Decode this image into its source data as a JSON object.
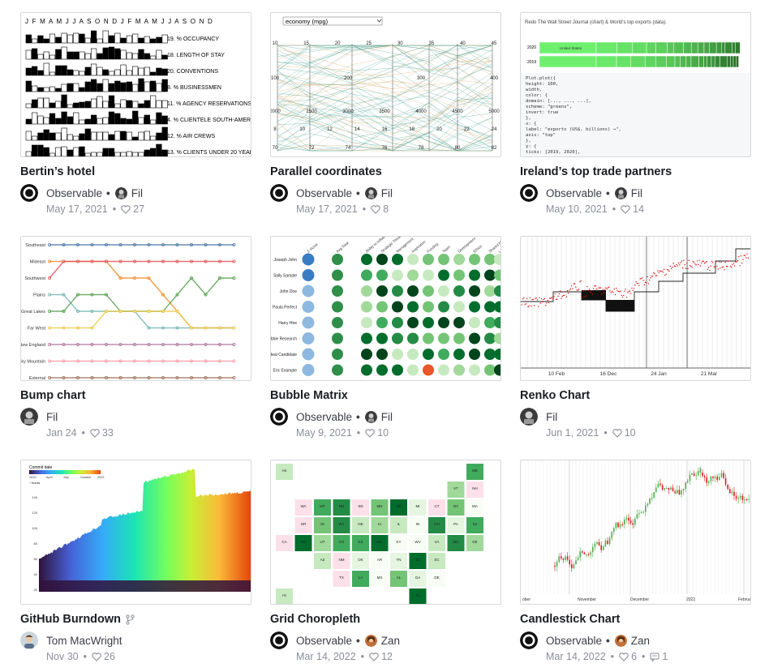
{
  "cards": [
    {
      "title": "Bertin’s hotel",
      "org": "Observable",
      "author": "Fil",
      "date": "May 17, 2021",
      "likes": "27",
      "thumb": {
        "months": "J F M A M J J A S O N D J F M A M J J A S O N D",
        "rows": [
          "19. % OCCUPANCY",
          "18. LENGTH OF STAY",
          "20. CONVENTIONS",
          "8. % BUSINESSMEN",
          "11. % AGENCY RESERVATIONS",
          "4. % CLIENTELE SOUTH-AMERICA",
          "12. % AIR CREWS",
          "13. % CLIENTS UNDER 20 YEARS"
        ]
      }
    },
    {
      "title": "Parallel coordinates",
      "org": "Observable",
      "author": "Fil",
      "date": "May 17, 2021",
      "likes": "8",
      "thumb": {
        "select": "economy (mpg)",
        "axes": [
          [
            "10",
            "15",
            "20",
            "25",
            "30",
            "35",
            "40",
            "45"
          ],
          [
            "3",
            "4",
            "5",
            "6",
            "7",
            "8"
          ],
          [
            "100",
            "200",
            "300",
            "400"
          ],
          [
            "50",
            "100",
            "150",
            "200"
          ],
          [
            "2000",
            "2500",
            "3000",
            "3500",
            "4000",
            "4500",
            "5000"
          ],
          [
            "8",
            "10",
            "12",
            "14",
            "16",
            "18",
            "20",
            "22",
            "24"
          ],
          [
            "70",
            "72",
            "74",
            "76",
            "78",
            "80",
            "82"
          ]
        ]
      }
    },
    {
      "title": "Ireland’s top trade partners",
      "org": "Observable",
      "author": "Fil",
      "date": "May 10, 2021",
      "likes": "14",
      "thumb": {
        "caption": "Redo The Wall Street Journal (chart) & World’s top exports (data).",
        "years": [
          "2020",
          "2019"
        ],
        "cell_label": "United States",
        "code": [
          "Plot.plot({",
          "  height: 100,",
          "  width,",
          "  color: {",
          "    domain: [..., ..., ...],",
          "    scheme: \"greens\",",
          "    invert: true",
          "  },",
          "  x: {",
          "    label: \"exports (US$, billions) →\",",
          "    axis: \"top\"",
          "  },",
          "  y: {",
          "    ticks: [2019, 2020],"
        ]
      }
    },
    {
      "title": "Bump chart",
      "author": "Fil",
      "date": "Jan 24",
      "likes": "33",
      "thumb": {
        "regions": [
          "Southeast",
          "Mideast",
          "Southwest",
          "Plains",
          "Great Lakes",
          "Far West",
          "New England",
          "Rocky Mountain",
          "External"
        ]
      }
    },
    {
      "title": "Bubble Matrix",
      "org": "Observable",
      "author": "Fil",
      "date": "May 9, 2021",
      "likes": "10",
      "thumb": {
        "people": [
          "Joseph John",
          "Sally Sample",
          "John Doe",
          "Paula Perfect",
          "Harry Hire",
          "Bobbie Research",
          "Ideal Candidate",
          "Eric Example"
        ],
        "cols": [
          "Z-Score",
          "Avg Total",
          "Ability to Influence",
          "Strategic Thinking",
          "Management",
          "Inspiration",
          "Funding",
          "Team",
          "Development",
          "Ethics",
          "Shared Mission",
          "Leadership"
        ]
      }
    },
    {
      "title": "Renko Chart",
      "author": "Fil",
      "date": "Jun 1, 2021",
      "likes": "10",
      "thumb": {
        "ticks": [
          "10 Feb",
          "16 Dec",
          "24 Jan",
          "21 Mar"
        ]
      }
    },
    {
      "title": "GitHub Burndown",
      "author": "Tom MacWright",
      "date": "Nov 30",
      "likes": "26",
      "forked": true,
      "thumb": {
        "legend_title": "Commit date",
        "legend_ticks": [
          "2015",
          "April",
          "July",
          "October",
          "2022"
        ],
        "ylabel": "↑ hours",
        "yticks": [
          "140",
          "120",
          "100",
          "80",
          "60",
          "40",
          "20"
        ]
      }
    },
    {
      "title": "Grid Choropleth",
      "org": "Observable",
      "author": "Zan",
      "date": "Mar 14, 2022",
      "likes": "12"
    },
    {
      "title": "Candlestick Chart",
      "org": "Observable",
      "author": "Zan",
      "date": "Mar 14, 2022",
      "likes": "6",
      "comments": "1",
      "thumb": {
        "ticks": [
          "ober",
          "November",
          "December",
          "2022",
          "February"
        ]
      }
    }
  ],
  "colors": {
    "observable": "#111111",
    "green_dark": "#1e7a3a",
    "green_light": "#c7e9c0",
    "teal": "#3a9a8a",
    "tan": "#d4a664"
  }
}
